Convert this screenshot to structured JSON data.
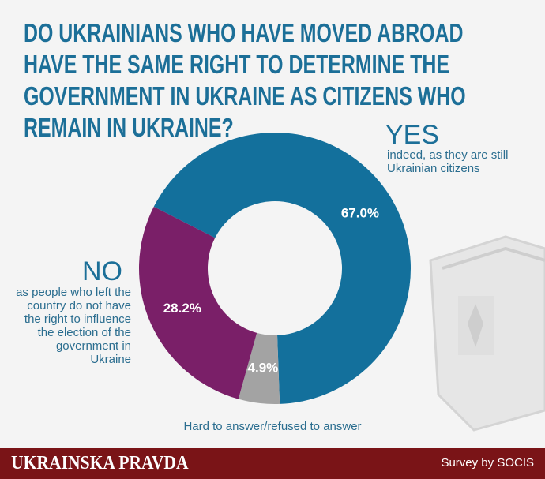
{
  "chart_data": {
    "type": "donut",
    "title": "DO UKRAINIANS WHO HAVE MOVED ABROAD HAVE THE SAME RIGHT TO DETERMINE THE GOVERNMENT IN UKRAINE AS CITIZENS WHO REMAIN IN UKRAINE?",
    "categories": [
      "YES",
      "Hard to answer/refused to answer",
      "NO"
    ],
    "descriptions": [
      "indeed, as they are still Ukrainian citizens",
      null,
      "as people who left the country do not have the right to influence the election of the government in Ukraine"
    ],
    "values": [
      67.0,
      4.9,
      28.2
    ],
    "value_labels": [
      "67.0%",
      "4.9%",
      "28.2%"
    ],
    "colors": [
      "#13709c",
      "#a3a3a3",
      "#7a1f68"
    ]
  },
  "footer": {
    "brand": "UKRAINSKA PRAVDA",
    "source": "Survey by SOCIS"
  }
}
